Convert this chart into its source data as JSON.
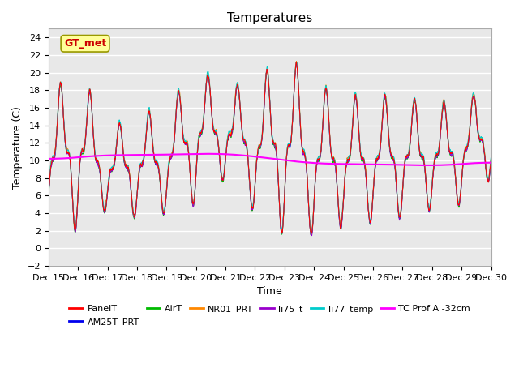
{
  "title": "Temperatures",
  "xlabel": "Time",
  "ylabel": "Temperature (C)",
  "ylim": [
    -2,
    25
  ],
  "yticks": [
    -2,
    0,
    2,
    4,
    6,
    8,
    10,
    12,
    14,
    16,
    18,
    20,
    22,
    24
  ],
  "series_colors": {
    "PanelT": "#FF0000",
    "AM25T_PRT": "#0000EE",
    "AirT": "#00BB00",
    "NR01_PRT": "#FF8800",
    "li75_t": "#9900CC",
    "li77_temp": "#00CCCC",
    "TC Prof A -32cm": "#FF00FF"
  },
  "annotation_text": "GT_met",
  "annotation_color": "#CC0000",
  "annotation_bg": "#FFFF99",
  "annotation_edge": "#999900",
  "background_color": "#E8E8E8",
  "grid_color": "#FFFFFF",
  "title_fontsize": 11,
  "axis_fontsize": 9,
  "tick_fontsize": 8
}
